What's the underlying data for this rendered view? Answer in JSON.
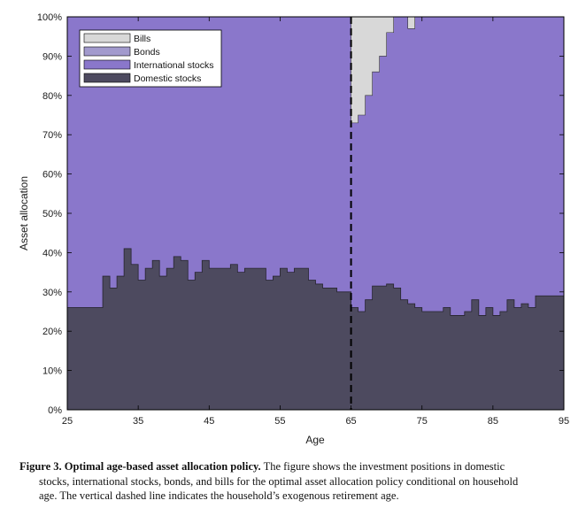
{
  "chart_data": {
    "type": "area",
    "stacked": true,
    "xlabel": "Age",
    "ylabel": "Asset allocation",
    "xlim": [
      25,
      95
    ],
    "ylim": [
      0,
      100
    ],
    "xticks": [
      25,
      35,
      45,
      55,
      65,
      75,
      85,
      95
    ],
    "yticks": [
      0,
      10,
      20,
      30,
      40,
      50,
      60,
      70,
      80,
      90,
      100
    ],
    "ytick_labels": [
      "0%",
      "10%",
      "20%",
      "30%",
      "40%",
      "50%",
      "60%",
      "70%",
      "80%",
      "90%",
      "100%"
    ],
    "retirement_age": 65,
    "legend_position": "top-left",
    "legend": [
      "Bills",
      "Bonds",
      "International stocks",
      "Domestic stocks"
    ],
    "colors": {
      "bills": "#d8d8d8",
      "bonds": "#a29acd",
      "international": "#8a77cb",
      "domestic": "#4d4a5f",
      "dashed_line": "#000000"
    },
    "domestic_stocks": [
      [
        25,
        26
      ],
      [
        26,
        26
      ],
      [
        27,
        26
      ],
      [
        28,
        26
      ],
      [
        29,
        26
      ],
      [
        30,
        34
      ],
      [
        31,
        31
      ],
      [
        32,
        34
      ],
      [
        33,
        41
      ],
      [
        34,
        37
      ],
      [
        35,
        33
      ],
      [
        36,
        36
      ],
      [
        37,
        38
      ],
      [
        38,
        34
      ],
      [
        39,
        36
      ],
      [
        40,
        39
      ],
      [
        41,
        38
      ],
      [
        42,
        33
      ],
      [
        43,
        35
      ],
      [
        44,
        38
      ],
      [
        45,
        36
      ],
      [
        46,
        36
      ],
      [
        47,
        36
      ],
      [
        48,
        37
      ],
      [
        49,
        35
      ],
      [
        50,
        36
      ],
      [
        51,
        36
      ],
      [
        52,
        36
      ],
      [
        53,
        33
      ],
      [
        54,
        34
      ],
      [
        55,
        36
      ],
      [
        56,
        35
      ],
      [
        57,
        36
      ],
      [
        58,
        36
      ],
      [
        59,
        33
      ],
      [
        60,
        32
      ],
      [
        61,
        31
      ],
      [
        62,
        31
      ],
      [
        63,
        30
      ],
      [
        64,
        30
      ],
      [
        65,
        26
      ],
      [
        66,
        25
      ],
      [
        67,
        28
      ],
      [
        68,
        31.5
      ],
      [
        69,
        31.5
      ],
      [
        70,
        32
      ],
      [
        71,
        31
      ],
      [
        72,
        28
      ],
      [
        73,
        27
      ],
      [
        74,
        26
      ],
      [
        75,
        25
      ],
      [
        76,
        25
      ],
      [
        77,
        25
      ],
      [
        78,
        26
      ],
      [
        79,
        24
      ],
      [
        80,
        24
      ],
      [
        81,
        25
      ],
      [
        82,
        28
      ],
      [
        83,
        24
      ],
      [
        84,
        26
      ],
      [
        85,
        24
      ],
      [
        86,
        25
      ],
      [
        87,
        28
      ],
      [
        88,
        26
      ],
      [
        89,
        27
      ],
      [
        90,
        26
      ],
      [
        91,
        29
      ],
      [
        92,
        29
      ],
      [
        93,
        29
      ],
      [
        94,
        29
      ],
      [
        95,
        29
      ]
    ],
    "bills_top": [
      [
        65,
        73
      ],
      [
        66,
        75
      ],
      [
        67,
        80
      ],
      [
        68,
        86
      ],
      [
        69,
        90
      ],
      [
        70,
        96
      ],
      [
        71,
        100
      ],
      [
        72,
        100
      ],
      [
        73,
        97
      ],
      [
        74,
        100
      ],
      [
        75,
        100
      ]
    ]
  },
  "caption": {
    "label": "Figure 3.  Optimal age-based asset allocation policy.",
    "text_line1": " The figure shows the investment positions in domestic",
    "text_line2": "stocks, international stocks, bonds, and bills for the optimal asset allocation policy conditional on household",
    "text_line3": "age. The vertical dashed line indicates the household’s exogenous retirement age."
  }
}
